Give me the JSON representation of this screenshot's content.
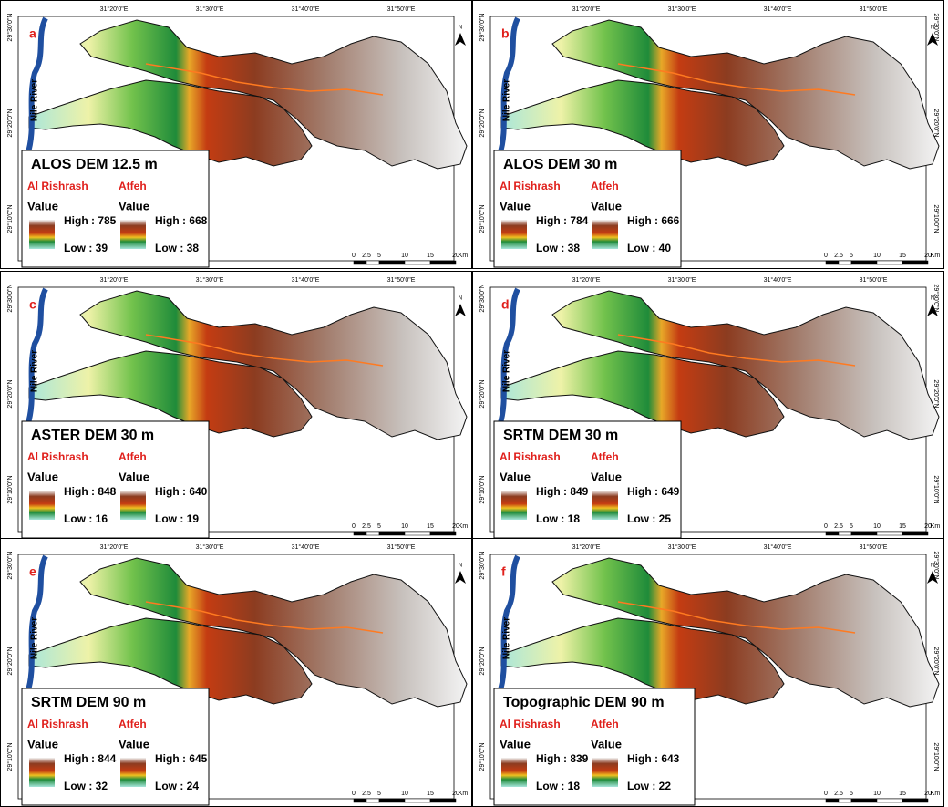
{
  "panels": [
    {
      "letter": "a",
      "title": "ALOS DEM 12.5  m",
      "legend": [
        {
          "name": "Al Rishrash",
          "value": "Value",
          "high": "High : 785",
          "low": "Low : 39"
        },
        {
          "name": "Atfeh",
          "value": "Value",
          "high": "High : 668",
          "low": "Low : 38"
        }
      ]
    },
    {
      "letter": "b",
      "title": "ALOS DEM 30 m",
      "legend": [
        {
          "name": "Al Rishrash",
          "value": "Value",
          "high": "High : 784",
          "low": "Low : 38"
        },
        {
          "name": "Atfeh",
          "value": "Value",
          "high": "High : 666",
          "low": "Low : 40"
        }
      ]
    },
    {
      "letter": "c",
      "title": "ASTER DEM 30 m",
      "legend": [
        {
          "name": "Al Rishrash",
          "value": "Value",
          "high": "High : 848",
          "low": "Low : 16"
        },
        {
          "name": "Atfeh",
          "value": "Value",
          "high": "High : 640",
          "low": "Low : 19"
        }
      ]
    },
    {
      "letter": "d",
      "title": "SRTM DEM 30 m",
      "legend": [
        {
          "name": "Al Rishrash",
          "value": "Value",
          "high": "High : 849",
          "low": "Low : 18"
        },
        {
          "name": "Atfeh",
          "value": "Value",
          "high": "High : 649",
          "low": "Low : 25"
        }
      ]
    },
    {
      "letter": "e",
      "title": "SRTM DEM 90 m",
      "legend": [
        {
          "name": "Al Rishrash",
          "value": "Value",
          "high": "High : 844",
          "low": "Low : 32"
        },
        {
          "name": "Atfeh",
          "value": "Value",
          "high": "High : 645",
          "low": "Low : 24"
        }
      ]
    },
    {
      "letter": "f",
      "title": "Topographic DEM 90 m",
      "legend": [
        {
          "name": "Al Rishrash",
          "value": "Value",
          "high": "High : 839",
          "low": "Low : 18"
        },
        {
          "name": "Atfeh",
          "value": "Value",
          "high": "High : 643",
          "low": "Low : 22"
        }
      ]
    }
  ],
  "top_ticks": [
    "31°20'0\"E",
    "31°30'0\"E",
    "31°40'0\"E",
    "31°50'0\"E"
  ],
  "side_ticks": [
    "29°30'0\"N",
    "29°20'0\"N",
    "29°10'0\"N"
  ],
  "scale_labels": [
    "0",
    "2.5",
    "5",
    "10",
    "15",
    "20",
    "Km"
  ],
  "river": "Nile River",
  "north": "N"
}
